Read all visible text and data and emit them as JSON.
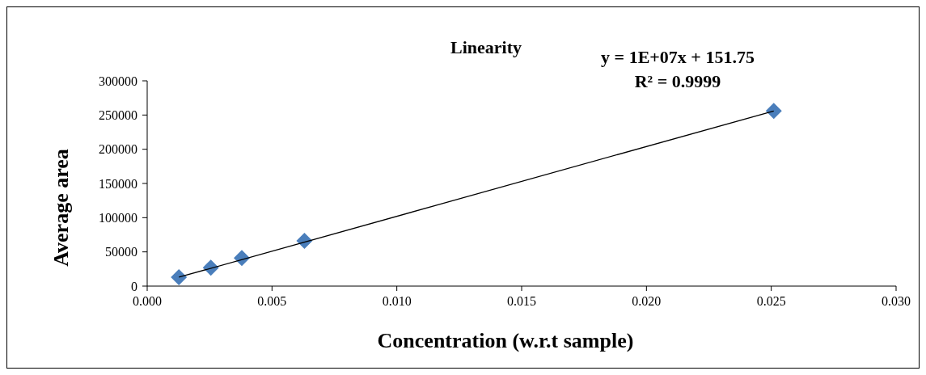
{
  "chart_data": {
    "type": "scatter",
    "title": "Linearity",
    "xlabel": "Concentration (w.r.t sample)",
    "ylabel": "Average area",
    "annotations": [
      "y = 1E+07x + 151.75",
      "R² = 0.9999"
    ],
    "xlim": [
      0,
      0.03
    ],
    "xticks": [
      {
        "value": 0,
        "label": "0.000"
      },
      {
        "value": 0.005,
        "label": "0.005"
      },
      {
        "value": 0.01,
        "label": "0.010"
      },
      {
        "value": 0.015,
        "label": "0.015"
      },
      {
        "value": 0.02,
        "label": "0.020"
      },
      {
        "value": 0.025,
        "label": "0.025"
      },
      {
        "value": 0.03,
        "label": "0.030"
      }
    ],
    "ylim": [
      0,
      300000
    ],
    "yticks": [
      0,
      50000,
      100000,
      150000,
      200000,
      250000,
      300000
    ],
    "grid": false,
    "series": [
      {
        "color": "#4a7ebb",
        "marker": "diamond",
        "x": [
          0.00127,
          0.00255,
          0.00379,
          0.0063,
          0.0251
        ],
        "values": [
          13000,
          27000,
          41000,
          66000,
          256000
        ]
      },
      {
        "type": "line",
        "color": "#000000",
        "marker": "none",
        "line_style": "solid",
        "x": [
          0.00127,
          0.0251
        ],
        "values": [
          13000,
          256000
        ]
      }
    ]
  }
}
